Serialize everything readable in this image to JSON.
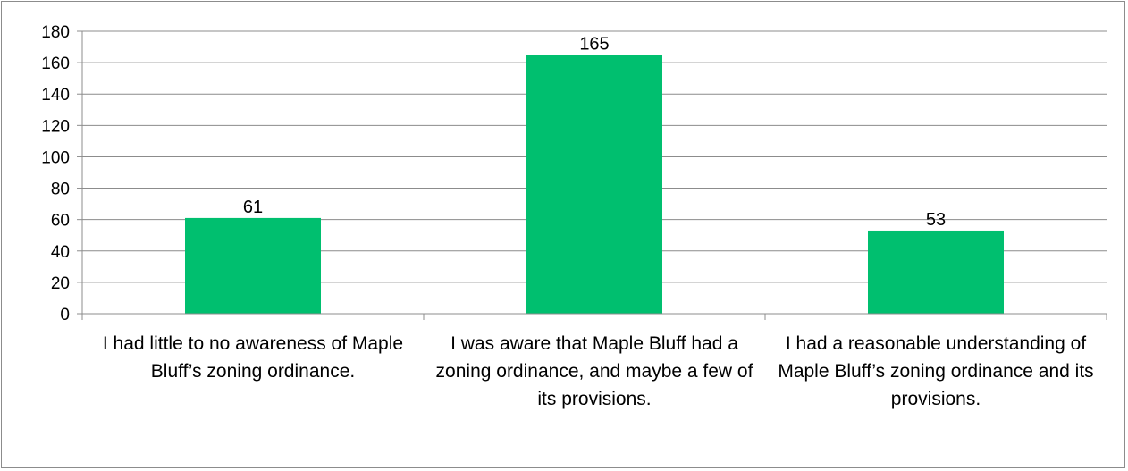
{
  "chart_data": {
    "type": "bar",
    "categories": [
      "I had little to no awareness of Maple Bluff’s zoning ordinance.",
      "I was aware that Maple Bluff had a zoning ordinance, and maybe a few of its provisions.",
      "I had a reasonable understanding of Maple Bluff’s zoning ordinance and its provisions."
    ],
    "values": [
      61,
      165,
      53
    ],
    "data_labels": [
      "61",
      "165",
      "53"
    ],
    "y_ticks": [
      "0",
      "20",
      "40",
      "60",
      "80",
      "100",
      "120",
      "140",
      "160",
      "180"
    ],
    "ylim": [
      0,
      180
    ],
    "title": "",
    "xlabel": "",
    "ylabel": "",
    "grid": true,
    "legend": "none",
    "bar_color": "#00bf6f",
    "gridline_color": "#8c8c8c"
  }
}
